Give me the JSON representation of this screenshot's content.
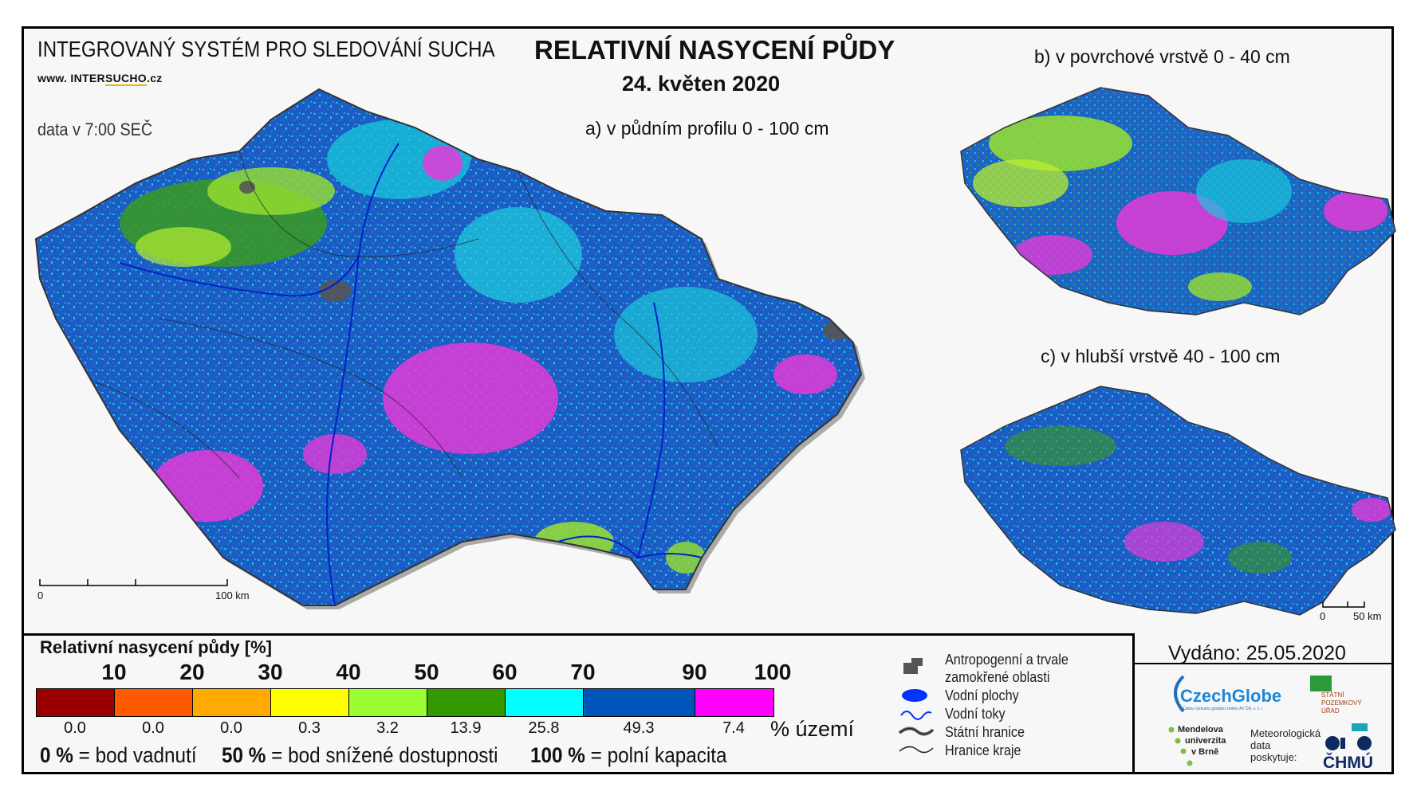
{
  "header": {
    "system_title": "INTEGROVANÝ SYSTÉM PRO SLEDOVÁNÍ SUCHA",
    "website_prefix": "www. INTER",
    "website_underlined": "SUCHO",
    "website_suffix": ".cz",
    "data_time": "data v 7:00 SEČ",
    "main_title": "RELATIVNÍ NASYCENÍ PŮDY",
    "date": "24. květen 2020"
  },
  "maps": {
    "a_label": "a) v půdním profilu 0 - 100 cm",
    "b_label": "b) v povrchové vrstvě 0 - 40 cm",
    "c_label": "c) v hlubší vrstvě 40 - 100 cm",
    "scale_main": {
      "zero": "0",
      "end": "100 km"
    },
    "scale_small": {
      "zero": "0",
      "end": "50 km"
    }
  },
  "legend": {
    "title": "Relativní nasycení půdy [%]",
    "thresholds": [
      "10",
      "20",
      "30",
      "40",
      "50",
      "60",
      "70",
      "90",
      "100"
    ],
    "classes": [
      {
        "color": "#9a0000",
        "share": "0.0"
      },
      {
        "color": "#ff5a00",
        "share": "0.0"
      },
      {
        "color": "#ffaa00",
        "share": "0.0"
      },
      {
        "color": "#ffff00",
        "share": "0.3"
      },
      {
        "color": "#99ff33",
        "share": "3.2"
      },
      {
        "color": "#339900",
        "share": "13.9"
      },
      {
        "color": "#00ffff",
        "share": "25.8"
      },
      {
        "color": "#0055bb",
        "share": "49.3"
      },
      {
        "color": "#ff00ff",
        "share": "7.4"
      }
    ],
    "area_unit": "% území",
    "notes": [
      {
        "bold": "0 %",
        "text": " = bod vadnutí"
      },
      {
        "bold": "50 %",
        "text": " = bod snížené dostupnosti"
      },
      {
        "bold": "100 %",
        "text": " = polní kapacita"
      }
    ]
  },
  "symbols": {
    "anthropogenic_1": "Antropogenní a trvale",
    "anthropogenic_2": "zamokřené oblasti",
    "water_bodies": "Vodní plochy",
    "rivers": "Vodní toky",
    "state_border": "Státní hranice",
    "region_border": "Hranice kraje"
  },
  "footer": {
    "issued": "Vydáno: 25.05.2020",
    "czechglobe": "CzechGlobe",
    "czechglobe_sub": "Ústav výzkumu globální změny AV ČR, v. v. i.",
    "spu_1": "STÁTNÍ",
    "spu_2": "POZEMKOVÝ",
    "spu_3": "ÚŘAD",
    "mendel_1": "Mendelova",
    "mendel_2": "univerzita",
    "mendel_3": "v Brně",
    "meteo_1": "Meteorologická",
    "meteo_2": "data",
    "meteo_3": "poskytuje:",
    "chmu": "ČHMÚ"
  }
}
